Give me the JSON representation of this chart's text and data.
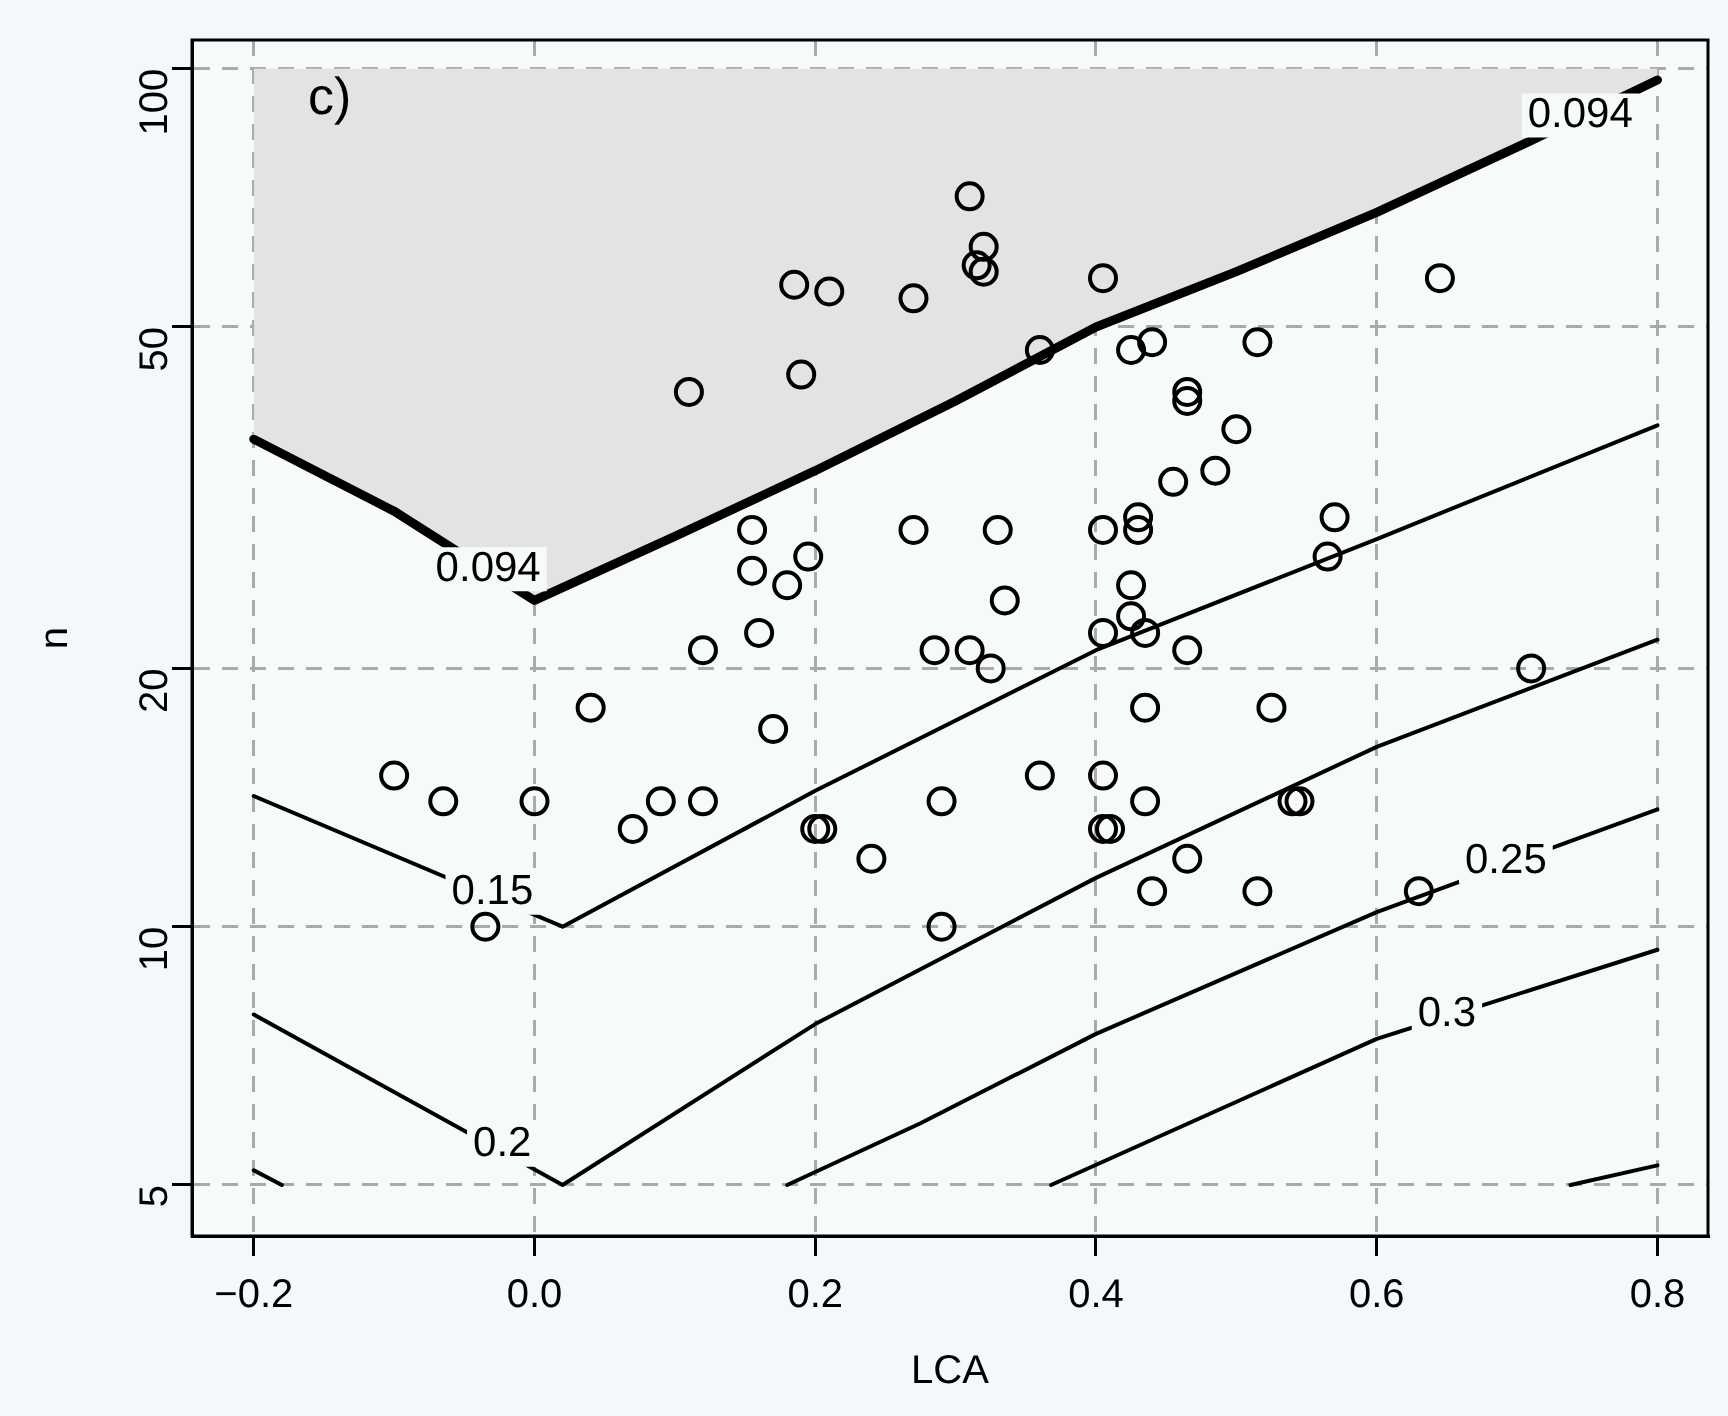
{
  "chart_data": {
    "type": "scatter",
    "xlabel": "LCA",
    "ylabel": "n",
    "xlim": [
      -0.244,
      0.836
    ],
    "xticks": [
      {
        "value": -0.2,
        "label": "−0.2"
      },
      {
        "value": 0,
        "label": "0.0"
      },
      {
        "value": 0.2,
        "label": "0.2"
      },
      {
        "value": 0.4,
        "label": "0.4"
      },
      {
        "value": 0.6,
        "label": "0.6"
      },
      {
        "value": 0.8,
        "label": "0.8"
      }
    ],
    "ylim": [
      4.36,
      108
    ],
    "yticks": [
      5,
      10,
      20,
      50,
      100
    ],
    "log": "y",
    "grid": true,
    "legend": false,
    "line_style": "dashed",
    "series": [
      {
        "type": "scatter",
        "color": "#000000",
        "marker": "circle",
        "x": [
          0.31,
          0.32,
          0.315,
          0.32,
          0.185,
          0.21,
          0.27,
          0.405,
          0.645,
          0.11,
          0.19,
          0.36,
          0.425,
          0.44,
          0.515,
          0.465,
          0.465,
          0.5,
          0.455,
          0.485,
          0.57,
          0.565,
          0.155,
          0.27,
          0.33,
          0.405,
          0.43,
          0.43,
          0.155,
          0.195,
          0.18,
          0.335,
          0.425,
          0.425,
          0.16,
          0.12,
          0.285,
          0.31,
          0.325,
          0.405,
          0.435,
          0.465,
          0.04,
          0.17,
          0.435,
          0.525,
          0.71,
          -0.1,
          -0.065,
          0.0,
          0.07,
          0.09,
          0.12,
          0.2,
          0.205,
          0.24,
          0.29,
          0.36,
          0.405,
          0.405,
          0.41,
          0.435,
          0.54,
          0.545,
          0.44,
          0.465,
          0.515,
          -0.035,
          0.29,
          0.63
        ],
        "values": [
          71,
          62,
          59,
          58,
          56,
          55,
          54,
          57,
          57,
          42,
          44,
          47,
          47,
          48,
          48,
          42,
          41,
          38,
          33,
          34,
          30,
          27,
          29,
          29,
          29,
          29,
          30,
          29,
          26,
          27,
          25,
          24,
          25,
          23,
          22,
          21,
          21,
          21,
          20,
          22,
          22,
          21,
          18,
          17,
          18,
          18,
          20,
          15,
          14,
          14,
          13,
          14,
          14,
          13,
          13,
          12,
          14,
          15,
          15,
          13,
          13,
          14,
          14,
          14,
          11,
          12,
          11,
          10,
          10,
          11
        ]
      },
      {
        "type": "line",
        "color": "#000000",
        "line_style": "solid",
        "x": [
          -0.2,
          -0.1,
          0.0,
          0.1,
          0.2,
          0.3,
          0.4,
          0.5,
          0.6,
          0.7,
          0.8
        ],
        "values": [
          37,
          30.5,
          24,
          28.5,
          34,
          41,
          50,
          58,
          68,
          81,
          97
        ],
        "lower": [
          37,
          30.5,
          24,
          28.5,
          34,
          41,
          50,
          58,
          68,
          81,
          97
        ],
        "upper": [
          100,
          100,
          100,
          100,
          100,
          100,
          100,
          100,
          100,
          100,
          100
        ]
      },
      {
        "type": "line",
        "color": "#000000",
        "line_style": "solid",
        "x": [
          -0.2,
          0.02,
          0.2,
          0.4,
          0.6,
          0.8
        ],
        "values": [
          14.2,
          10,
          14.4,
          21,
          28.3,
          38.4
        ]
      },
      {
        "type": "line",
        "color": "#000000",
        "line_style": "solid",
        "x": [
          -0.2,
          0.02,
          0.2,
          0.4,
          0.6,
          0.8
        ],
        "values": [
          7.9,
          5.0,
          7.7,
          11.4,
          16.2,
          21.6
        ]
      },
      {
        "type": "line",
        "color": "#000000",
        "line_style": "solid",
        "x": [
          -0.2,
          -0.18,
          0.0,
          0.18,
          0.275,
          0.4,
          0.6,
          0.8
        ],
        "values": [
          5.2,
          5.0,
          null,
          5.0,
          5.9,
          7.5,
          10.4,
          13.7
        ]
      },
      {
        "type": "line",
        "color": "#000000",
        "line_style": "solid",
        "x": [
          0.368,
          0.6,
          0.8
        ],
        "values": [
          5.0,
          7.4,
          9.4
        ]
      },
      {
        "type": "line",
        "color": "#000000",
        "line_style": "solid",
        "x": [
          0.738,
          0.8
        ],
        "values": [
          5.0,
          5.27
        ]
      }
    ],
    "annotations": [
      "c)",
      {
        "text": "0.094",
        "x": -0.033,
        "y": 26.1
      },
      {
        "text": "0.094",
        "x": 0.745,
        "y": 88.2
      },
      {
        "text": "0.15",
        "x": -0.03,
        "y": 10.95
      },
      {
        "text": "0.2",
        "x": -0.023,
        "y": 5.57
      },
      {
        "text": "0.25",
        "x": 0.692,
        "y": 11.9
      },
      {
        "text": "0.3",
        "x": 0.65,
        "y": 7.9
      }
    ]
  }
}
